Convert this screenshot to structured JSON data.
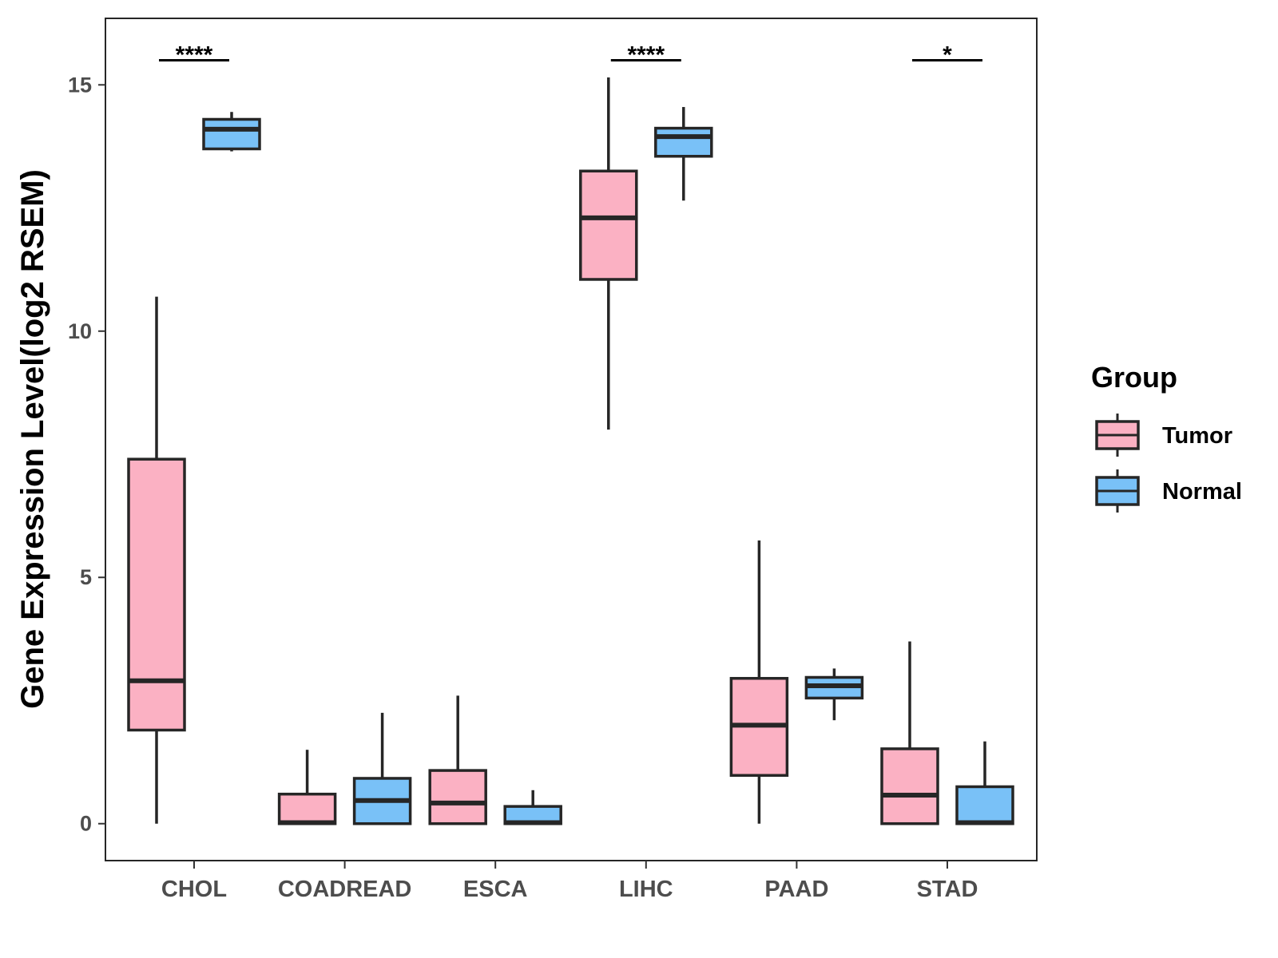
{
  "chart_data": {
    "type": "boxplot",
    "title": "",
    "xlabel": "",
    "ylabel": "Gene Expression Level(log2 RSEM)",
    "ylim": [
      -0.75,
      16.35
    ],
    "yticks": [
      0,
      5,
      10,
      15
    ],
    "yticklabels": [
      "0",
      "5",
      "10",
      "15"
    ],
    "categories": [
      "CHOL",
      "COADREAD",
      "ESCA",
      "LIHC",
      "PAAD",
      "STAD"
    ],
    "legend": {
      "title": "Group",
      "position": "right",
      "entries": [
        "Tumor",
        "Normal"
      ]
    },
    "colors": {
      "Tumor": "#fbb1c3",
      "Normal": "#79c1f7",
      "outline": "#262626"
    },
    "series": [
      {
        "name": "Tumor",
        "boxes": [
          {
            "category": "CHOL",
            "min": 0.0,
            "q1": 1.9,
            "median": 2.9,
            "q3": 7.4,
            "max": 10.7
          },
          {
            "category": "COADREAD",
            "min": 0.0,
            "q1": 0.0,
            "median": 0.02,
            "q3": 0.6,
            "max": 1.5
          },
          {
            "category": "ESCA",
            "min": 0.0,
            "q1": 0.0,
            "median": 0.42,
            "q3": 1.08,
            "max": 2.6
          },
          {
            "category": "LIHC",
            "min": 8.0,
            "q1": 11.05,
            "median": 12.3,
            "q3": 13.25,
            "max": 15.15
          },
          {
            "category": "PAAD",
            "min": 0.0,
            "q1": 0.98,
            "median": 2.0,
            "q3": 2.95,
            "max": 5.75
          },
          {
            "category": "STAD",
            "min": 0.0,
            "q1": 0.0,
            "median": 0.58,
            "q3": 1.52,
            "max": 3.7
          }
        ]
      },
      {
        "name": "Normal",
        "boxes": [
          {
            "category": "CHOL",
            "min": 13.65,
            "q1": 13.7,
            "median": 14.1,
            "q3": 14.3,
            "max": 14.45
          },
          {
            "category": "COADREAD",
            "min": 0.0,
            "q1": 0.0,
            "median": 0.47,
            "q3": 0.92,
            "max": 2.25
          },
          {
            "category": "ESCA",
            "min": 0.0,
            "q1": 0.0,
            "median": 0.02,
            "q3": 0.35,
            "max": 0.68
          },
          {
            "category": "LIHC",
            "min": 12.65,
            "q1": 13.55,
            "median": 13.95,
            "q3": 14.12,
            "max": 14.55
          },
          {
            "category": "PAAD",
            "min": 2.1,
            "q1": 2.55,
            "median": 2.8,
            "q3": 2.97,
            "max": 3.15
          },
          {
            "category": "STAD",
            "min": 0.0,
            "q1": 0.0,
            "median": 0.02,
            "q3": 0.75,
            "max": 1.67
          }
        ]
      }
    ],
    "annotations": [
      {
        "category": "CHOL",
        "label": "****",
        "y": 15.5
      },
      {
        "category": "LIHC",
        "label": "****",
        "y": 15.5
      },
      {
        "category": "STAD",
        "label": "*",
        "y": 15.5
      }
    ]
  }
}
